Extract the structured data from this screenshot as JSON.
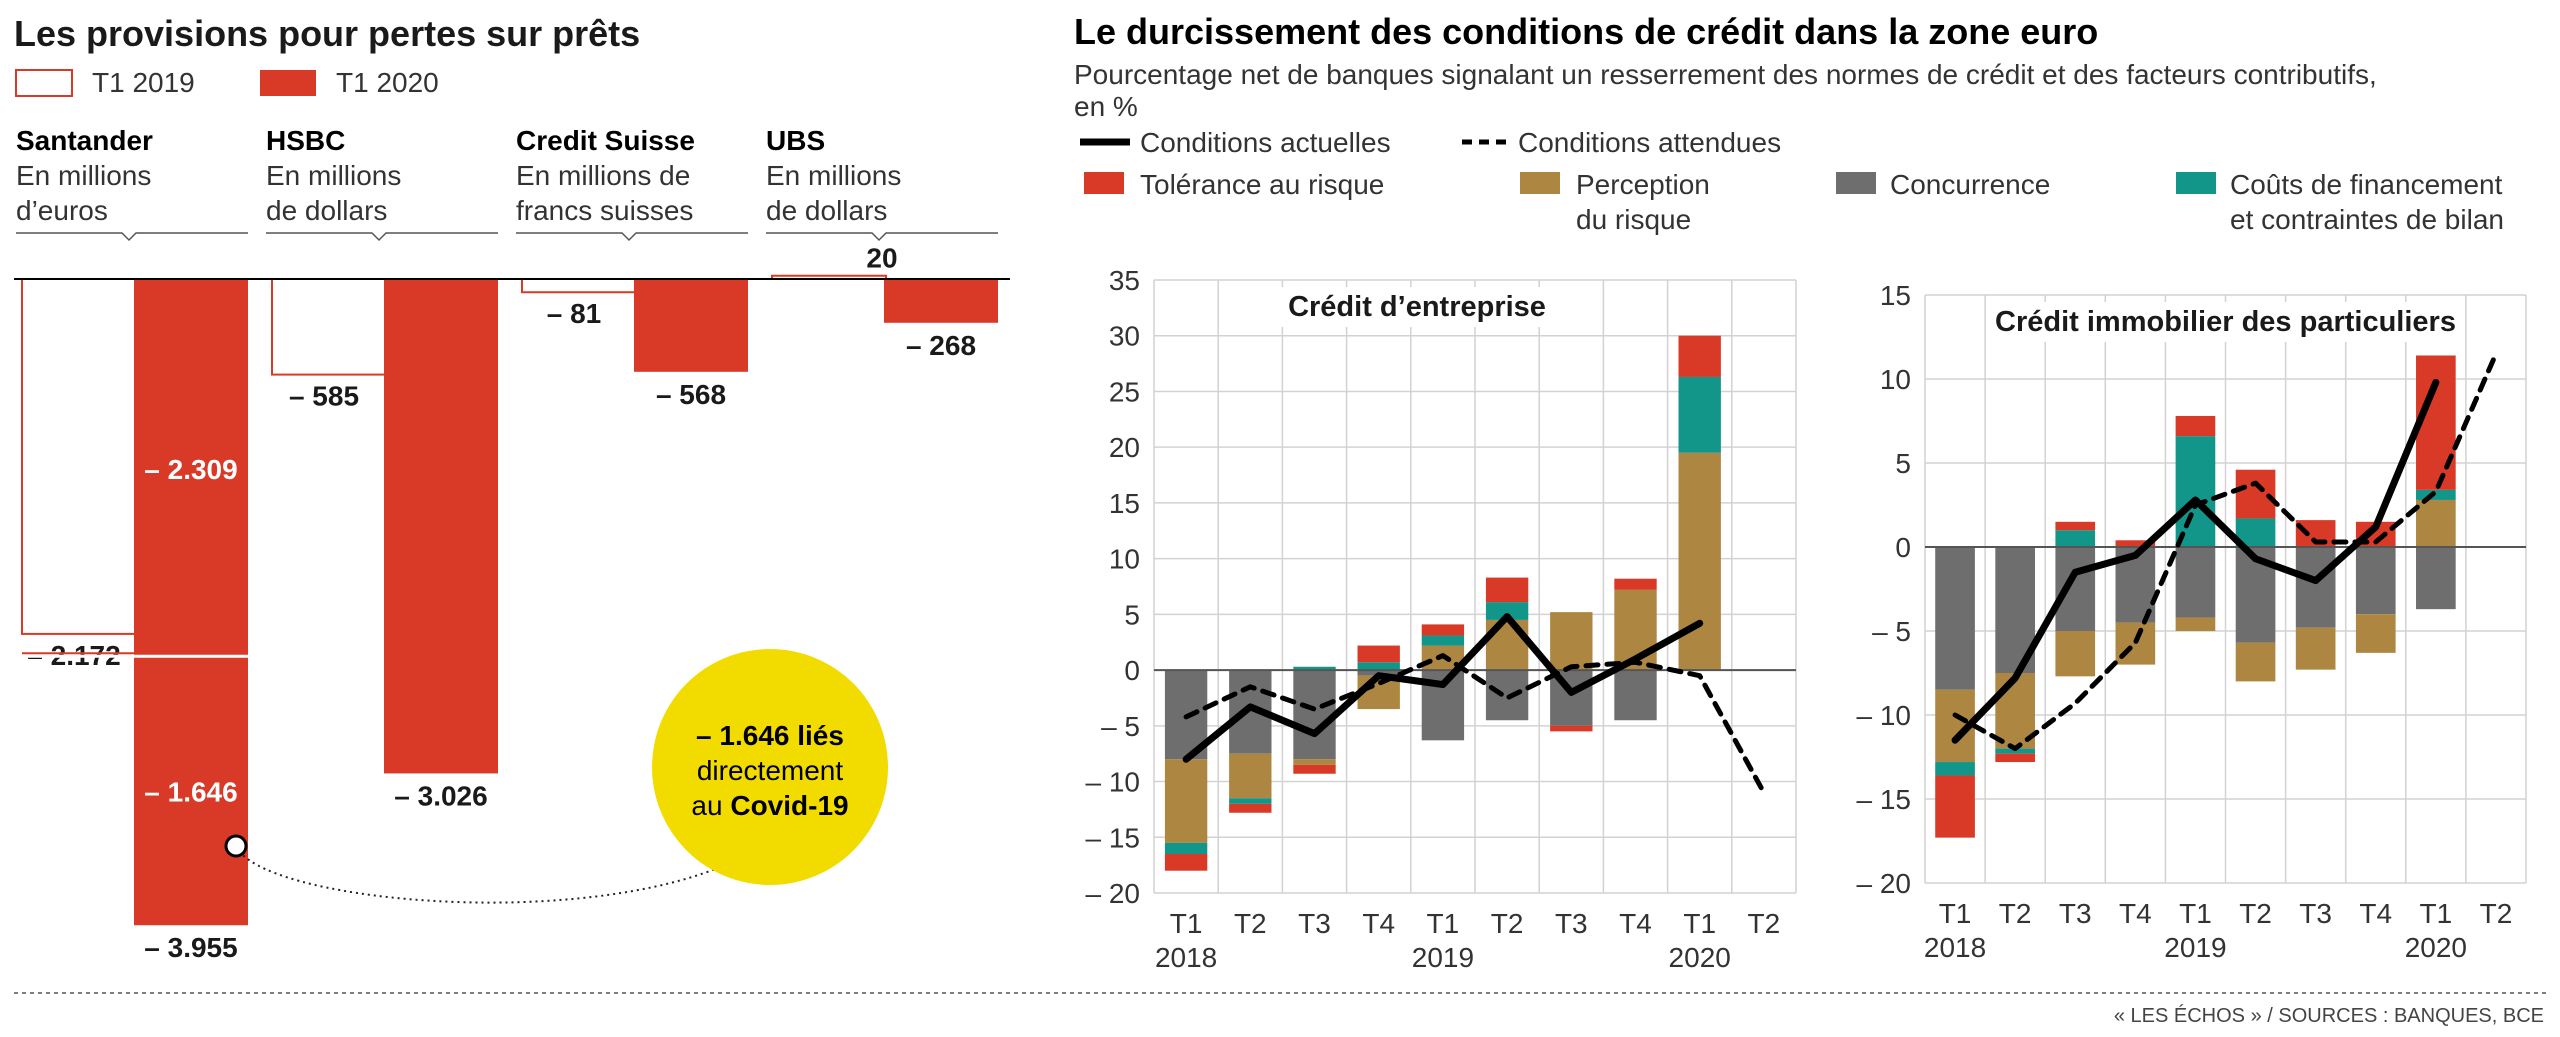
{
  "colors": {
    "red": "#d93a27",
    "tan": "#ad8641",
    "gray": "#6e6e6e",
    "teal": "#12968a",
    "black": "#000000",
    "grid": "#d2d2d2",
    "yellow": "#f2dc00"
  },
  "left": {
    "title": "Les provisions pour pertes sur prêts",
    "legend": [
      {
        "label": "T1 2019",
        "style": "outline"
      },
      {
        "label": "T1 2020",
        "style": "filled"
      }
    ],
    "banks": [
      {
        "name": "Santander",
        "unit": [
          "En millions",
          "d’euros"
        ]
      },
      {
        "name": "HSBC",
        "unit": [
          "En millions",
          "de dollars"
        ]
      },
      {
        "name": "Credit Suisse",
        "unit": [
          "En millions de",
          "francs suisses"
        ]
      },
      {
        "name": "UBS",
        "unit": [
          "En millions",
          "de dollars"
        ]
      }
    ],
    "callout": {
      "line1": "– 1.646 liés",
      "line2": "directement",
      "line3_prefix": "au ",
      "line3_bold": "Covid-19"
    }
  },
  "right": {
    "title": "Le durcissement des conditions de crédit dans la zone euro",
    "subtitle_line1": "Pourcentage net de banques signalant un resserrement des normes de crédit et des facteurs contributifs,",
    "subtitle_line2": "en %",
    "legend": {
      "actual": "Conditions actuelles",
      "expected": "Conditions attendues",
      "risk_tolerance": "Tolérance au risque",
      "risk_perception_1": "Perception",
      "risk_perception_2": "du risque",
      "competition": "Concurrence",
      "funding_1": "Coûts de financement",
      "funding_2": "et contraintes de bilan"
    }
  },
  "source": "« LES ÉCHOS » / SOURCES : BANQUES, BCE",
  "chart_data": [
    {
      "type": "bar",
      "title": "Les provisions pour pertes sur prêts",
      "unit_note": "En millions (devise locale)",
      "categories": [
        "Santander",
        "HSBC",
        "Credit Suisse",
        "UBS"
      ],
      "series": [
        {
          "name": "T1 2019",
          "values": [
            -2172,
            -585,
            -81,
            20
          ],
          "labels": [
            "– 2.172",
            "– 585",
            "– 81",
            "20"
          ]
        },
        {
          "name": "T1 2020",
          "values": [
            -3955,
            -3026,
            -568,
            -268
          ],
          "labels": [
            "– 3.955",
            "– 3.026",
            "– 568",
            "– 268"
          ]
        }
      ],
      "santander_2020_split": {
        "values": [
          -2309,
          -1646
        ],
        "labels": [
          "– 2.309",
          "– 1.646"
        ]
      }
    },
    {
      "type": "bar",
      "stacked": true,
      "title": "Crédit d’entreprise",
      "categories": [
        "T1",
        "T2",
        "T3",
        "T4",
        "T1",
        "T2",
        "T3",
        "T4",
        "T1",
        "T2"
      ],
      "years": [
        "2018",
        "",
        "",
        "",
        "2019",
        "",
        "",
        "",
        "2020",
        ""
      ],
      "yticks": [
        35,
        30,
        25,
        20,
        15,
        10,
        5,
        0,
        -5,
        -10,
        -15,
        -20
      ],
      "ytick_labels": [
        "35",
        "30",
        "25",
        "20",
        "15",
        "10",
        "5",
        "0",
        "– 5",
        "– 10",
        "– 15",
        "– 20"
      ],
      "ylim": [
        -20,
        35
      ],
      "series": [
        {
          "name": "Concurrence",
          "values": [
            -8,
            -7.5,
            -8,
            -0.5,
            -6.3,
            -4.5,
            -5,
            -4.5,
            0,
            null
          ]
        },
        {
          "name": "Perception du risque",
          "values": [
            -7.5,
            -4,
            -0.5,
            -3,
            2.2,
            4.5,
            5.2,
            7.2,
            19.5,
            null
          ]
        },
        {
          "name": "Coûts de financement et contraintes de bilan",
          "values": [
            -1,
            -0.5,
            0.3,
            0.7,
            0.9,
            1.6,
            0,
            0,
            6.8,
            null
          ]
        },
        {
          "name": "Tolérance au risque",
          "values": [
            -1.5,
            -0.8,
            -0.8,
            1.5,
            1,
            2.2,
            -0.5,
            1,
            3.7,
            null
          ]
        }
      ],
      "lines": [
        {
          "name": "Conditions actuelles",
          "values": [
            -8,
            -3.3,
            -5.7,
            -0.5,
            -1.3,
            4.8,
            -2,
            1,
            4.2,
            null
          ]
        },
        {
          "name": "Conditions attendues",
          "values": [
            -4.2,
            -1.5,
            -3.5,
            -1.2,
            1.3,
            -2.5,
            0.3,
            0.7,
            -0.5,
            -11
          ]
        }
      ]
    },
    {
      "type": "bar",
      "stacked": true,
      "title": "Crédit immobilier des particuliers",
      "categories": [
        "T1",
        "T2",
        "T3",
        "T4",
        "T1",
        "T2",
        "T3",
        "T4",
        "T1",
        "T2"
      ],
      "years": [
        "2018",
        "",
        "",
        "",
        "2019",
        "",
        "",
        "",
        "2020",
        ""
      ],
      "yticks": [
        15,
        10,
        5,
        0,
        -5,
        -10,
        -15,
        -20
      ],
      "ytick_labels": [
        "15",
        "10",
        "5",
        "0",
        "– 5",
        "– 10",
        "– 15",
        "– 20"
      ],
      "ylim": [
        -20,
        15
      ],
      "series": [
        {
          "name": "Concurrence",
          "values": [
            -8.5,
            -7.5,
            -5,
            -4.5,
            -4.2,
            -5.7,
            -4.8,
            -4,
            -3.7,
            null
          ]
        },
        {
          "name": "Perception du risque",
          "values": [
            -4.3,
            -4.5,
            -2.7,
            -2.5,
            -0.8,
            -2.3,
            -2.5,
            -2.3,
            2.8,
            null
          ]
        },
        {
          "name": "Coûts de financement et contraintes de bilan",
          "values": [
            -0.8,
            -0.3,
            1,
            0,
            6.6,
            1.7,
            0,
            0,
            0.6,
            null
          ]
        },
        {
          "name": "Tolérance au risque",
          "values": [
            -3.7,
            -0.5,
            0.5,
            0.4,
            1.2,
            2.9,
            1.6,
            1.5,
            8,
            null
          ]
        }
      ],
      "lines": [
        {
          "name": "Conditions actuelles",
          "values": [
            -11.5,
            -7.8,
            -1.5,
            -0.5,
            2.8,
            -0.7,
            -2,
            1.2,
            9.8,
            null
          ]
        },
        {
          "name": "Conditions attendues",
          "values": [
            -10,
            -12,
            -9.3,
            -5.7,
            2.5,
            3.8,
            0.3,
            0.3,
            3.3,
            11.5
          ]
        }
      ]
    }
  ]
}
